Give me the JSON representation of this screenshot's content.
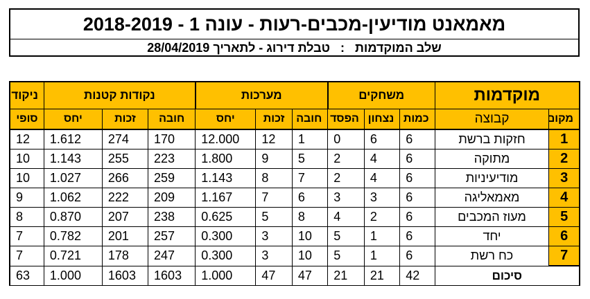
{
  "header": {
    "title": "מאמאנט מודיעין-מכבים-רעות - עונה 1 - 2018-2019",
    "subtitle": "שלב המוקדמות   :   טבלת דירוג - לתאריך 28/04/2019"
  },
  "table": {
    "section_main": "מוקדמות",
    "group_players": "משחקים",
    "group_sets": "מערכות",
    "group_points": "נקודות קטנות",
    "col_final_top": "ניקוד",
    "col_final_bottom": "סופי",
    "col_place": "מקום",
    "col_team": "קבוצה",
    "col_amount": "כמות",
    "col_win": "נצחון",
    "col_loss": "הפסד",
    "col_debit": "חובה",
    "col_credit": "זכות",
    "col_ratio": "יחס",
    "rows": [
      {
        "place": "1",
        "team": "חזקות ברשת",
        "amount": "6",
        "win": "6",
        "loss": "0",
        "sets_debit": "1",
        "sets_credit": "12",
        "sets_ratio": "12.000",
        "pts_debit": "170",
        "pts_credit": "274",
        "pts_ratio": "1.612",
        "final": "12"
      },
      {
        "place": "2",
        "team": "מתוקה",
        "amount": "6",
        "win": "4",
        "loss": "2",
        "sets_debit": "5",
        "sets_credit": "9",
        "sets_ratio": "1.800",
        "pts_debit": "223",
        "pts_credit": "255",
        "pts_ratio": "1.143",
        "final": "10"
      },
      {
        "place": "3",
        "team": "מודיעיניות",
        "amount": "6",
        "win": "4",
        "loss": "2",
        "sets_debit": "7",
        "sets_credit": "8",
        "sets_ratio": "1.143",
        "pts_debit": "259",
        "pts_credit": "266",
        "pts_ratio": "1.027",
        "final": "10"
      },
      {
        "place": "4",
        "team": "מאמאליגה",
        "amount": "6",
        "win": "3",
        "loss": "3",
        "sets_debit": "6",
        "sets_credit": "7",
        "sets_ratio": "1.167",
        "pts_debit": "209",
        "pts_credit": "222",
        "pts_ratio": "1.062",
        "final": "9"
      },
      {
        "place": "5",
        "team": "מעוז המכבים",
        "amount": "6",
        "win": "2",
        "loss": "4",
        "sets_debit": "8",
        "sets_credit": "5",
        "sets_ratio": "0.625",
        "pts_debit": "238",
        "pts_credit": "207",
        "pts_ratio": "0.870",
        "final": "8"
      },
      {
        "place": "6",
        "team": "יחד",
        "amount": "6",
        "win": "1",
        "loss": "5",
        "sets_debit": "10",
        "sets_credit": "3",
        "sets_ratio": "0.300",
        "pts_debit": "257",
        "pts_credit": "201",
        "pts_ratio": "0.782",
        "final": "7"
      },
      {
        "place": "7",
        "team": "כח רשת",
        "amount": "6",
        "win": "1",
        "loss": "5",
        "sets_debit": "10",
        "sets_credit": "3",
        "sets_ratio": "0.300",
        "pts_debit": "247",
        "pts_credit": "178",
        "pts_ratio": "0.721",
        "final": "7"
      }
    ],
    "summary": {
      "label": "סיכום",
      "amount": "42",
      "win": "21",
      "loss": "21",
      "sets_debit": "47",
      "sets_credit": "47",
      "sets_ratio": "1.000",
      "pts_debit": "1603",
      "pts_credit": "1603",
      "pts_ratio": "1.000",
      "final": "63"
    }
  },
  "colors": {
    "accent": "#ffc000",
    "border": "#000000"
  }
}
